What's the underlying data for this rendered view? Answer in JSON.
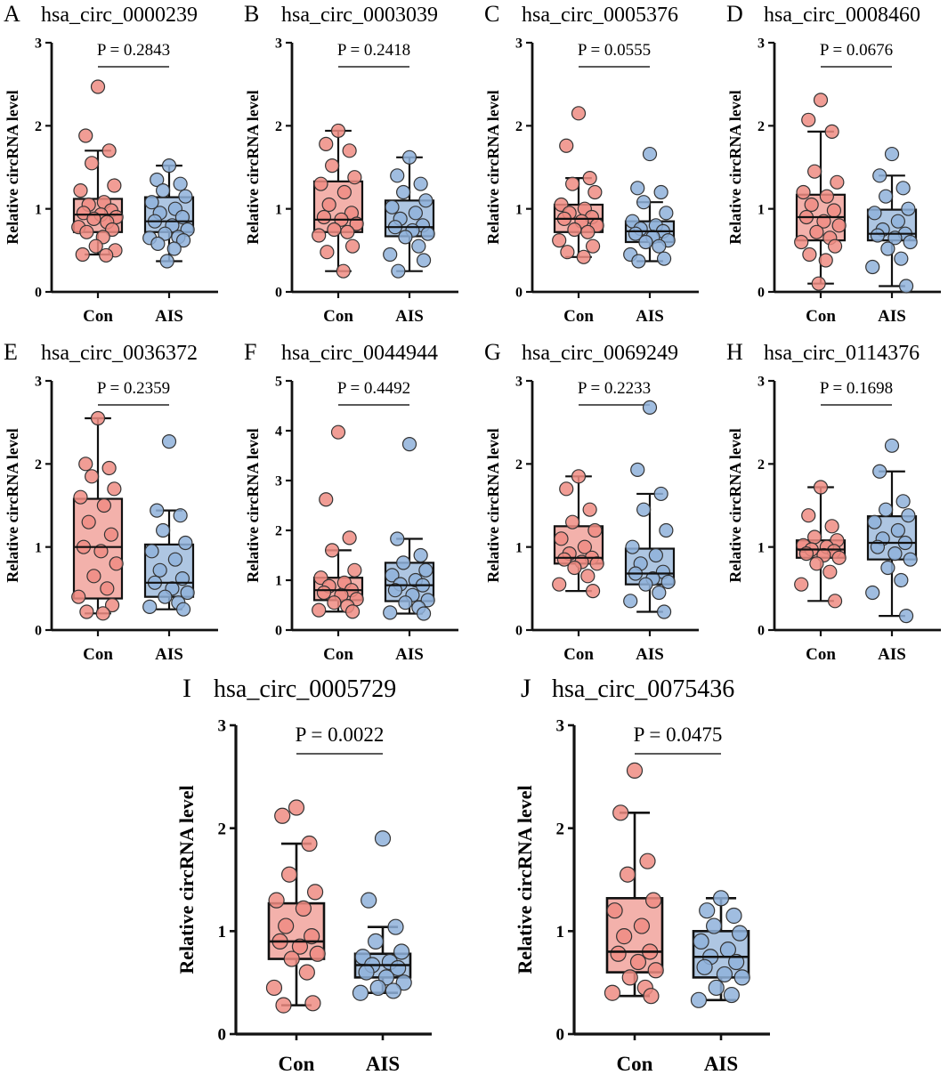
{
  "chart_data": [
    {
      "type": "box",
      "letter": "A",
      "title": "hsa_circ_0000239",
      "p_label": "P = 0.2843",
      "ylabel": "Relative circRNA level",
      "ylim": [
        0,
        3
      ],
      "yticks": [
        "0",
        "1",
        "2",
        "3"
      ],
      "categories": [
        "Con",
        "AIS"
      ],
      "groups": [
        {
          "name": "Con",
          "min": 0.45,
          "q1": 0.72,
          "median": 0.93,
          "q3": 1.12,
          "max": 1.7,
          "points": [
            2.47,
            1.88,
            1.7,
            1.55,
            1.28,
            1.22,
            1.08,
            1.05,
            0.98,
            0.95,
            0.93,
            0.9,
            0.88,
            0.84,
            0.78,
            0.75,
            0.72,
            0.66,
            0.55,
            0.5,
            0.45,
            0.44
          ]
        },
        {
          "name": "AIS",
          "min": 0.37,
          "q1": 0.72,
          "median": 0.85,
          "q3": 1.14,
          "max": 1.52,
          "points": [
            1.52,
            1.35,
            1.3,
            1.22,
            1.15,
            1.08,
            1.0,
            0.95,
            0.9,
            0.85,
            0.8,
            0.75,
            0.7,
            0.66,
            0.65,
            0.62,
            0.58,
            0.52,
            0.37
          ]
        }
      ]
    },
    {
      "type": "box",
      "letter": "B",
      "title": "hsa_circ_0003039",
      "p_label": "P = 0.2418",
      "ylabel": "Relative circRNA level",
      "ylim": [
        0,
        3
      ],
      "yticks": [
        "0",
        "1",
        "2",
        "3"
      ],
      "categories": [
        "Con",
        "AIS"
      ],
      "groups": [
        {
          "name": "Con",
          "min": 0.25,
          "q1": 0.72,
          "median": 0.87,
          "q3": 1.33,
          "max": 1.94,
          "points": [
            1.94,
            1.78,
            1.7,
            1.52,
            1.38,
            1.3,
            1.2,
            1.05,
            0.95,
            0.9,
            0.87,
            0.82,
            0.75,
            0.72,
            0.68,
            0.55,
            0.48,
            0.25
          ]
        },
        {
          "name": "AIS",
          "min": 0.25,
          "q1": 0.67,
          "median": 0.78,
          "q3": 1.1,
          "max": 1.62,
          "points": [
            1.62,
            1.4,
            1.3,
            1.2,
            1.1,
            1.02,
            0.95,
            0.88,
            0.8,
            0.78,
            0.74,
            0.7,
            0.66,
            0.55,
            0.45,
            0.38,
            0.25
          ]
        }
      ]
    },
    {
      "type": "box",
      "letter": "C",
      "title": "hsa_circ_0005376",
      "p_label": "P = 0.0555",
      "ylabel": "Relative circRNA level",
      "ylim": [
        0,
        3
      ],
      "yticks": [
        "0",
        "1",
        "2",
        "3"
      ],
      "categories": [
        "Con",
        "AIS"
      ],
      "groups": [
        {
          "name": "Con",
          "min": 0.42,
          "q1": 0.72,
          "median": 0.88,
          "q3": 1.05,
          "max": 1.37,
          "points": [
            2.15,
            1.76,
            1.37,
            1.3,
            1.2,
            1.05,
            1.0,
            0.95,
            0.9,
            0.88,
            0.85,
            0.8,
            0.75,
            0.72,
            0.62,
            0.55,
            0.48,
            0.42
          ]
        },
        {
          "name": "AIS",
          "min": 0.37,
          "q1": 0.6,
          "median": 0.73,
          "q3": 0.85,
          "max": 1.08,
          "points": [
            1.66,
            1.25,
            1.2,
            1.08,
            0.95,
            0.85,
            0.8,
            0.76,
            0.73,
            0.7,
            0.66,
            0.62,
            0.6,
            0.55,
            0.45,
            0.4,
            0.37
          ]
        }
      ]
    },
    {
      "type": "box",
      "letter": "D",
      "title": "hsa_circ_0008460",
      "p_label": "P = 0.0676",
      "ylabel": "Relative circRNA level",
      "ylim": [
        0,
        3
      ],
      "yticks": [
        "0",
        "1",
        "2",
        "3"
      ],
      "categories": [
        "Con",
        "AIS"
      ],
      "groups": [
        {
          "name": "Con",
          "min": 0.1,
          "q1": 0.62,
          "median": 0.9,
          "q3": 1.17,
          "max": 1.93,
          "points": [
            2.31,
            2.07,
            1.93,
            1.45,
            1.32,
            1.2,
            1.15,
            1.05,
            0.98,
            0.9,
            0.85,
            0.8,
            0.72,
            0.65,
            0.6,
            0.55,
            0.45,
            0.38,
            0.1
          ]
        },
        {
          "name": "AIS",
          "min": 0.07,
          "q1": 0.62,
          "median": 0.7,
          "q3": 0.99,
          "max": 1.4,
          "points": [
            1.66,
            1.4,
            1.25,
            1.15,
            1.0,
            0.95,
            0.85,
            0.75,
            0.7,
            0.68,
            0.65,
            0.6,
            0.52,
            0.4,
            0.3,
            0.07
          ]
        }
      ]
    },
    {
      "type": "box",
      "letter": "E",
      "title": "hsa_circ_0036372",
      "p_label": "P = 0.2359",
      "ylabel": "Relative circRNA level",
      "ylim": [
        0,
        3
      ],
      "yticks": [
        "0",
        "1",
        "2",
        "3"
      ],
      "categories": [
        "Con",
        "AIS"
      ],
      "groups": [
        {
          "name": "Con",
          "min": 0.2,
          "q1": 0.38,
          "median": 1.0,
          "q3": 1.58,
          "max": 2.55,
          "points": [
            2.55,
            2.0,
            1.95,
            1.85,
            1.7,
            1.6,
            1.5,
            1.3,
            1.15,
            1.0,
            0.95,
            0.8,
            0.65,
            0.5,
            0.4,
            0.3,
            0.22,
            0.2
          ]
        },
        {
          "name": "AIS",
          "min": 0.25,
          "q1": 0.4,
          "median": 0.57,
          "q3": 1.03,
          "max": 1.44,
          "points": [
            2.27,
            1.44,
            1.38,
            1.2,
            1.05,
            0.95,
            0.85,
            0.72,
            0.62,
            0.57,
            0.5,
            0.45,
            0.4,
            0.33,
            0.28,
            0.25
          ]
        }
      ]
    },
    {
      "type": "box",
      "letter": "F",
      "title": "hsa_circ_0044944",
      "p_label": "P = 0.4492",
      "ylabel": "Relative circRNA level",
      "ylim": [
        0,
        5
      ],
      "yticks": [
        "0",
        "1",
        "2",
        "3",
        "4",
        "5"
      ],
      "categories": [
        "Con",
        "AIS"
      ],
      "groups": [
        {
          "name": "Con",
          "min": 0.37,
          "q1": 0.6,
          "median": 0.8,
          "q3": 1.05,
          "max": 1.6,
          "points": [
            3.97,
            2.62,
            1.85,
            1.6,
            1.2,
            1.05,
            0.95,
            0.88,
            0.8,
            0.75,
            0.7,
            0.62,
            0.55,
            0.48,
            0.4,
            0.37
          ]
        },
        {
          "name": "AIS",
          "min": 0.33,
          "q1": 0.58,
          "median": 0.9,
          "q3": 1.35,
          "max": 1.83,
          "points": [
            3.73,
            1.83,
            1.5,
            1.35,
            1.2,
            1.1,
            1.0,
            0.92,
            0.9,
            0.8,
            0.7,
            0.6,
            0.55,
            0.45,
            0.35,
            0.33
          ]
        }
      ]
    },
    {
      "type": "box",
      "letter": "G",
      "title": "hsa_circ_0069249",
      "p_label": "P = 0.2233",
      "ylabel": "Relative circRNA level",
      "ylim": [
        0,
        3
      ],
      "yticks": [
        "0",
        "1",
        "2",
        "3"
      ],
      "categories": [
        "Con",
        "AIS"
      ],
      "groups": [
        {
          "name": "Con",
          "min": 0.47,
          "q1": 0.8,
          "median": 0.87,
          "q3": 1.25,
          "max": 1.85,
          "points": [
            1.85,
            1.7,
            1.45,
            1.3,
            1.2,
            1.1,
            1.0,
            0.92,
            0.87,
            0.85,
            0.82,
            0.8,
            0.75,
            0.65,
            0.55,
            0.47
          ]
        },
        {
          "name": "AIS",
          "min": 0.22,
          "q1": 0.55,
          "median": 0.68,
          "q3": 0.98,
          "max": 1.64,
          "points": [
            2.68,
            1.93,
            1.64,
            1.45,
            1.2,
            1.0,
            0.9,
            0.8,
            0.7,
            0.68,
            0.62,
            0.58,
            0.55,
            0.45,
            0.35,
            0.22
          ]
        }
      ]
    },
    {
      "type": "box",
      "letter": "H",
      "title": "hsa_circ_0114376",
      "p_label": "P = 0.1698",
      "ylabel": "Relative circRNA level",
      "ylim": [
        0,
        3
      ],
      "yticks": [
        "0",
        "1",
        "2",
        "3"
      ],
      "categories": [
        "Con",
        "AIS"
      ],
      "groups": [
        {
          "name": "Con",
          "min": 0.35,
          "q1": 0.87,
          "median": 0.97,
          "q3": 1.08,
          "max": 1.72,
          "points": [
            1.72,
            1.38,
            1.25,
            1.12,
            1.08,
            1.02,
            1.0,
            0.97,
            0.95,
            0.92,
            0.9,
            0.87,
            0.8,
            0.7,
            0.55,
            0.35
          ]
        },
        {
          "name": "AIS",
          "min": 0.17,
          "q1": 0.85,
          "median": 1.05,
          "q3": 1.37,
          "max": 1.91,
          "points": [
            2.22,
            1.91,
            1.55,
            1.45,
            1.38,
            1.3,
            1.2,
            1.1,
            1.05,
            1.0,
            0.92,
            0.85,
            0.75,
            0.6,
            0.45,
            0.17
          ]
        }
      ]
    },
    {
      "type": "box",
      "letter": "I",
      "title": "hsa_circ_0005729",
      "p_label": "P = 0.0022",
      "ylabel": "Relative circRNA level",
      "ylim": [
        0,
        3
      ],
      "yticks": [
        "0",
        "1",
        "2",
        "3"
      ],
      "categories": [
        "Con",
        "AIS"
      ],
      "groups": [
        {
          "name": "Con",
          "min": 0.28,
          "q1": 0.73,
          "median": 0.9,
          "q3": 1.27,
          "max": 1.85,
          "points": [
            2.2,
            2.12,
            1.85,
            1.55,
            1.38,
            1.3,
            1.22,
            1.05,
            0.95,
            0.9,
            0.85,
            0.78,
            0.73,
            0.6,
            0.45,
            0.3,
            0.28
          ]
        },
        {
          "name": "AIS",
          "min": 0.4,
          "q1": 0.55,
          "median": 0.67,
          "q3": 0.78,
          "max": 1.04,
          "points": [
            1.9,
            1.3,
            1.04,
            0.9,
            0.8,
            0.75,
            0.7,
            0.67,
            0.64,
            0.6,
            0.55,
            0.5,
            0.45,
            0.42,
            0.4
          ]
        }
      ]
    },
    {
      "type": "box",
      "letter": "J",
      "title": "hsa_circ_0075436",
      "p_label": "P = 0.0475",
      "ylabel": "Relative circRNA level",
      "ylim": [
        0,
        3
      ],
      "yticks": [
        "0",
        "1",
        "2",
        "3"
      ],
      "categories": [
        "Con",
        "AIS"
      ],
      "groups": [
        {
          "name": "Con",
          "min": 0.37,
          "q1": 0.6,
          "median": 0.8,
          "q3": 1.32,
          "max": 2.15,
          "points": [
            2.56,
            2.15,
            1.68,
            1.55,
            1.3,
            1.2,
            1.05,
            0.95,
            0.8,
            0.78,
            0.7,
            0.62,
            0.55,
            0.45,
            0.4,
            0.37
          ]
        },
        {
          "name": "AIS",
          "min": 0.33,
          "q1": 0.55,
          "median": 0.75,
          "q3": 1.0,
          "max": 1.32,
          "points": [
            1.32,
            1.2,
            1.15,
            1.05,
            0.98,
            0.9,
            0.82,
            0.75,
            0.7,
            0.65,
            0.58,
            0.55,
            0.45,
            0.38,
            0.33
          ]
        }
      ]
    }
  ],
  "colors": {
    "con_box": "#f3b1ab",
    "con_point": "#ef8c82",
    "ais_box": "#aec6e2",
    "ais_point": "#8fb2da",
    "stroke": "#111111"
  }
}
